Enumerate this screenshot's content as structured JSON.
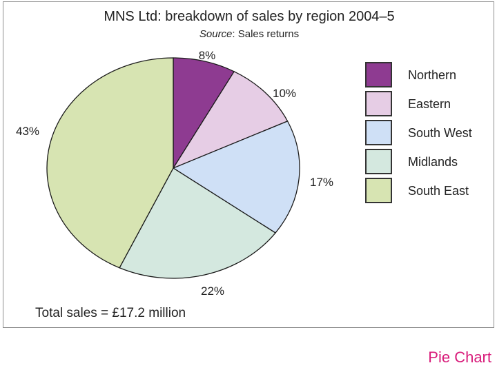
{
  "footer_label": "Pie Chart",
  "chart_data": {
    "type": "pie",
    "title": "MNS Ltd: breakdown of sales by region 2004–5",
    "source_label": "Source",
    "source_text": ": Sales returns",
    "total_note": "Total sales = £17.2 million",
    "legend_position": "right",
    "slices": [
      {
        "label": "Northern",
        "value": 8,
        "value_label": "8%",
        "color": "#8e3b91"
      },
      {
        "label": "Eastern",
        "value": 10,
        "value_label": "10%",
        "color": "#e6cde5"
      },
      {
        "label": "South West",
        "value": 17,
        "value_label": "17%",
        "color": "#cfe0f6"
      },
      {
        "label": "Midlands",
        "value": 22,
        "value_label": "22%",
        "color": "#d4e8df"
      },
      {
        "label": "South East",
        "value": 43,
        "value_label": "43%",
        "color": "#d7e4b2"
      }
    ]
  }
}
